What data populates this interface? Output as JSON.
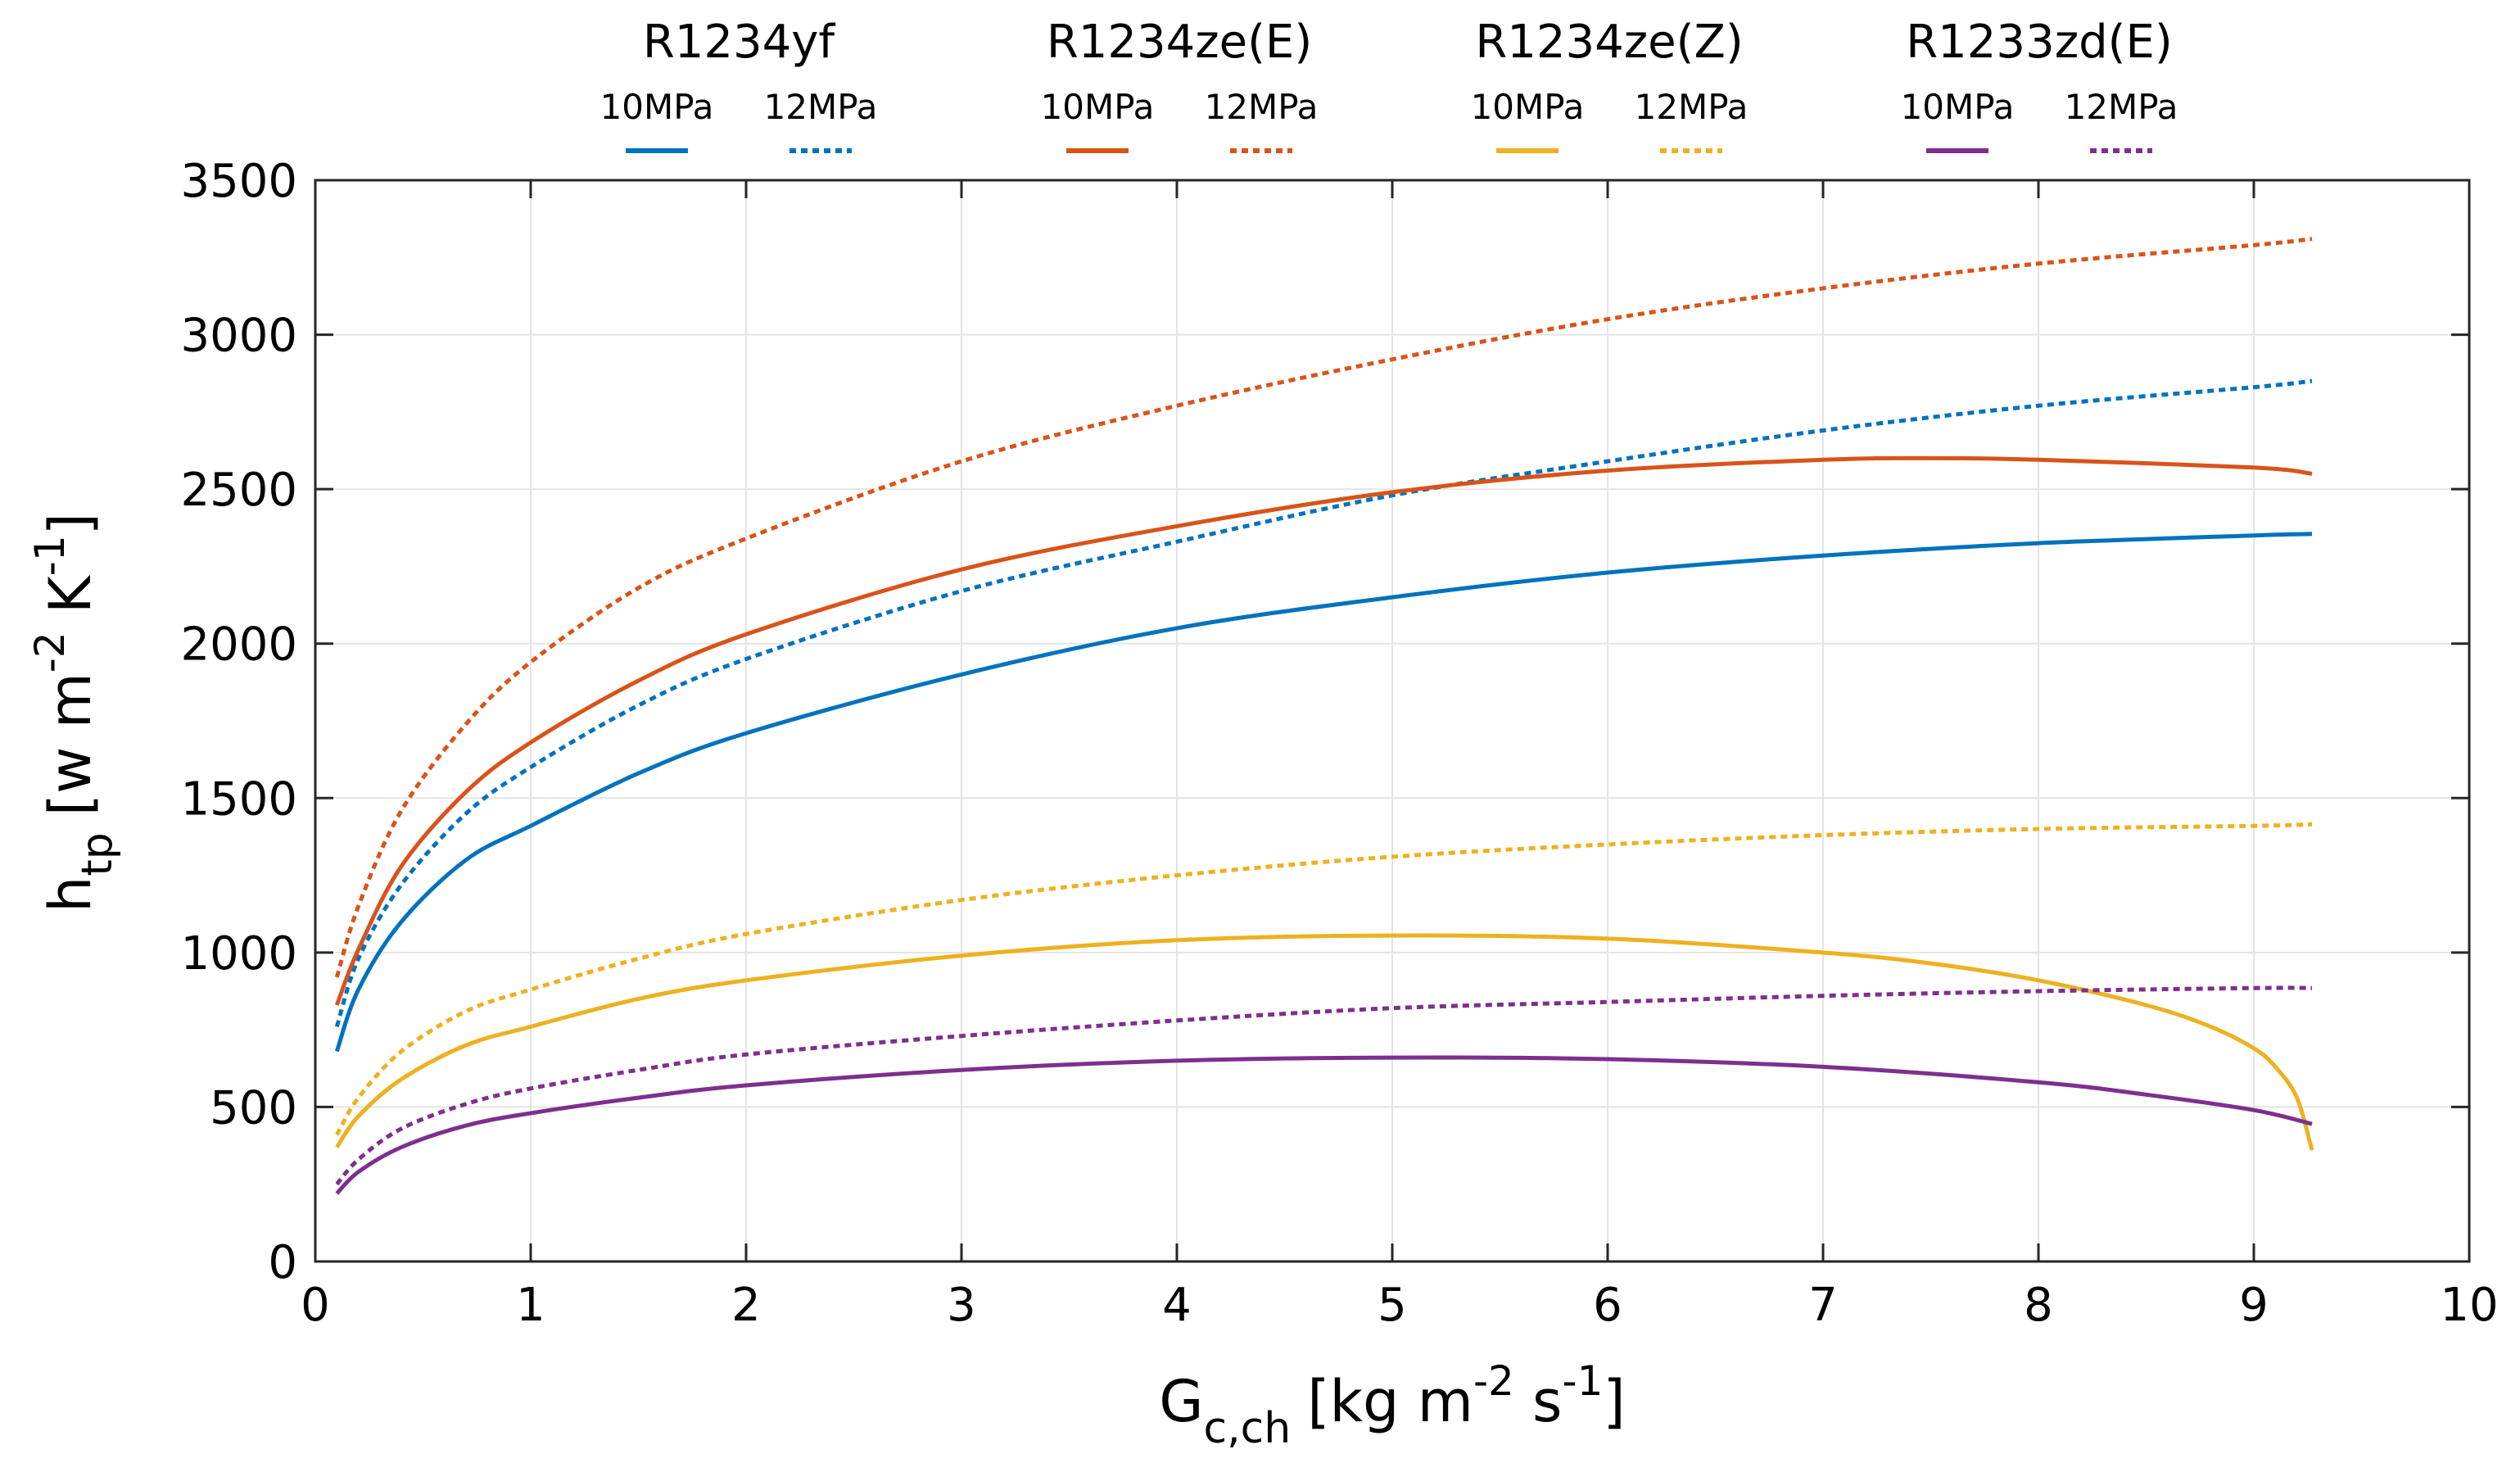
{
  "chart_data": {
    "type": "line",
    "title": "",
    "xlabel": {
      "base": "G",
      "sub": "c,ch",
      "unit_pre": "[kg m",
      "sup1": "-2",
      "mid": " s",
      "sup2": "-1",
      "unit_post": "]"
    },
    "ylabel": {
      "base": "h",
      "sub": "tp",
      "unit_pre": "[w m",
      "sup1": "-2",
      "mid": " K",
      "sup2": "-1",
      "unit_post": "]"
    },
    "xlim": [
      0,
      10
    ],
    "ylim": [
      0,
      3500
    ],
    "xticks": [
      0,
      1,
      2,
      3,
      4,
      5,
      6,
      7,
      8,
      9,
      10
    ],
    "yticks": [
      0,
      500,
      1000,
      1500,
      2000,
      2500,
      3000,
      3500
    ],
    "grid": true,
    "legend_position": "top",
    "colors": {
      "R1234yf": "#0072BD",
      "R1234ze(E)": "#D95319",
      "R1234ze(Z)": "#EDB120",
      "R1233zd(E)": "#7E2F8E"
    },
    "legend": [
      {
        "fluid": "R1234yf",
        "solid_label": "10MPa",
        "dotted_label": "12MPa"
      },
      {
        "fluid": "R1234ze(E)",
        "solid_label": "10MPa",
        "dotted_label": "12MPa"
      },
      {
        "fluid": "R1234ze(Z)",
        "solid_label": "10MPa",
        "dotted_label": "12MPa"
      },
      {
        "fluid": "R1233zd(E)",
        "solid_label": "10MPa",
        "dotted_label": "12MPa"
      }
    ],
    "series": [
      {
        "name": "R1234yf 10MPa",
        "fluid": "R1234yf",
        "style": "solid",
        "x": [
          0.1,
          0.2,
          0.4,
          0.7,
          1,
          1.5,
          2,
          3,
          4,
          5,
          6,
          7,
          8,
          9,
          9.27
        ],
        "y": [
          680,
          880,
          1100,
          1300,
          1410,
          1580,
          1710,
          1900,
          2050,
          2150,
          2230,
          2285,
          2325,
          2350,
          2355
        ]
      },
      {
        "name": "R1234yf 12MPa",
        "fluid": "R1234yf",
        "style": "dotted",
        "x": [
          0.1,
          0.2,
          0.4,
          0.7,
          1,
          1.5,
          2,
          3,
          4,
          5,
          6,
          7,
          8,
          9,
          9.27
        ],
        "y": [
          760,
          980,
          1220,
          1450,
          1600,
          1800,
          1950,
          2170,
          2330,
          2480,
          2590,
          2690,
          2770,
          2830,
          2850
        ]
      },
      {
        "name": "R1234ze(E) 10MPa",
        "fluid": "R1234ze(E)",
        "style": "solid",
        "x": [
          0.1,
          0.2,
          0.4,
          0.7,
          1,
          1.5,
          2,
          3,
          4,
          5,
          6,
          7,
          7.5,
          8,
          9,
          9.27
        ],
        "y": [
          830,
          1010,
          1280,
          1520,
          1680,
          1880,
          2030,
          2240,
          2380,
          2490,
          2560,
          2595,
          2600,
          2595,
          2570,
          2550
        ]
      },
      {
        "name": "R1234ze(E) 12MPa",
        "fluid": "R1234ze(E)",
        "style": "dotted",
        "x": [
          0.1,
          0.2,
          0.4,
          0.7,
          1,
          1.5,
          2,
          3,
          4,
          5,
          6,
          7,
          8,
          9,
          9.27
        ],
        "y": [
          920,
          1150,
          1460,
          1740,
          1940,
          2180,
          2340,
          2590,
          2770,
          2920,
          3050,
          3150,
          3230,
          3290,
          3310
        ]
      },
      {
        "name": "R1234ze(Z) 10MPa",
        "fluid": "R1234ze(Z)",
        "style": "solid",
        "x": [
          0.1,
          0.2,
          0.4,
          0.7,
          1,
          1.5,
          2,
          3,
          4,
          5,
          6,
          7,
          7.5,
          8,
          8.5,
          8.8,
          9,
          9.1,
          9.2,
          9.27
        ],
        "y": [
          370,
          470,
          590,
          700,
          760,
          850,
          910,
          990,
          1040,
          1055,
          1045,
          1000,
          965,
          910,
          830,
          760,
          690,
          630,
          530,
          360
        ]
      },
      {
        "name": "R1234ze(Z) 12MPa",
        "fluid": "R1234ze(Z)",
        "style": "dotted",
        "x": [
          0.1,
          0.2,
          0.4,
          0.7,
          1,
          1.5,
          2,
          3,
          4,
          5,
          6,
          7,
          8,
          9,
          9.27
        ],
        "y": [
          410,
          530,
          680,
          810,
          880,
          980,
          1060,
          1170,
          1250,
          1310,
          1350,
          1380,
          1400,
          1410,
          1415
        ]
      },
      {
        "name": "R1233zd(E) 10MPa",
        "fluid": "R1233zd(E)",
        "style": "solid",
        "x": [
          0.1,
          0.2,
          0.4,
          0.7,
          1,
          1.5,
          2,
          3,
          4,
          5,
          6,
          7,
          8,
          8.5,
          9,
          9.27
        ],
        "y": [
          220,
          290,
          370,
          440,
          480,
          530,
          570,
          620,
          650,
          660,
          655,
          630,
          580,
          540,
          490,
          445
        ]
      },
      {
        "name": "R1233zd(E) 12MPa",
        "fluid": "R1233zd(E)",
        "style": "dotted",
        "x": [
          0.1,
          0.2,
          0.4,
          0.7,
          1,
          1.5,
          2,
          3,
          4,
          5,
          6,
          7,
          8,
          9,
          9.27
        ],
        "y": [
          250,
          330,
          430,
          510,
          560,
          620,
          670,
          730,
          780,
          820,
          840,
          860,
          875,
          885,
          885
        ]
      }
    ]
  }
}
